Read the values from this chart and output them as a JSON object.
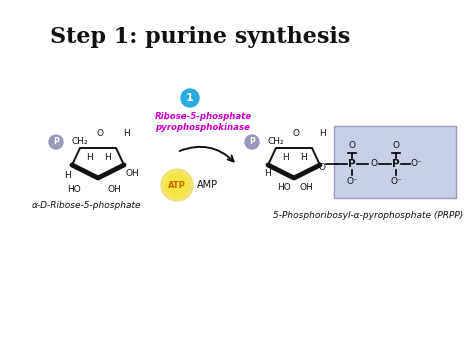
{
  "title": "Step 1: purine synthesis",
  "title_fontsize": 16,
  "title_fontweight": "bold",
  "bg_color": "#ffffff",
  "enzyme_text": "Ribose-5-phosphate\npyrophosphokinase",
  "enzyme_color": "#cc00cc",
  "atp_bg_color": "#f5e642",
  "atp_text_color": "#cc6600",
  "circle_color": "#29abe2",
  "step_number": "1",
  "left_label": "α-D-Ribose-5-phosphate",
  "right_label": "5-Phosphoribosyl-α-pyrophosphate (PRPP)",
  "p_circle_color": "#9999bb",
  "prpp_box_color": "#c8d0e8",
  "arrow_color": "#000000",
  "fig_w": 4.74,
  "fig_h": 3.55,
  "dpi": 100
}
